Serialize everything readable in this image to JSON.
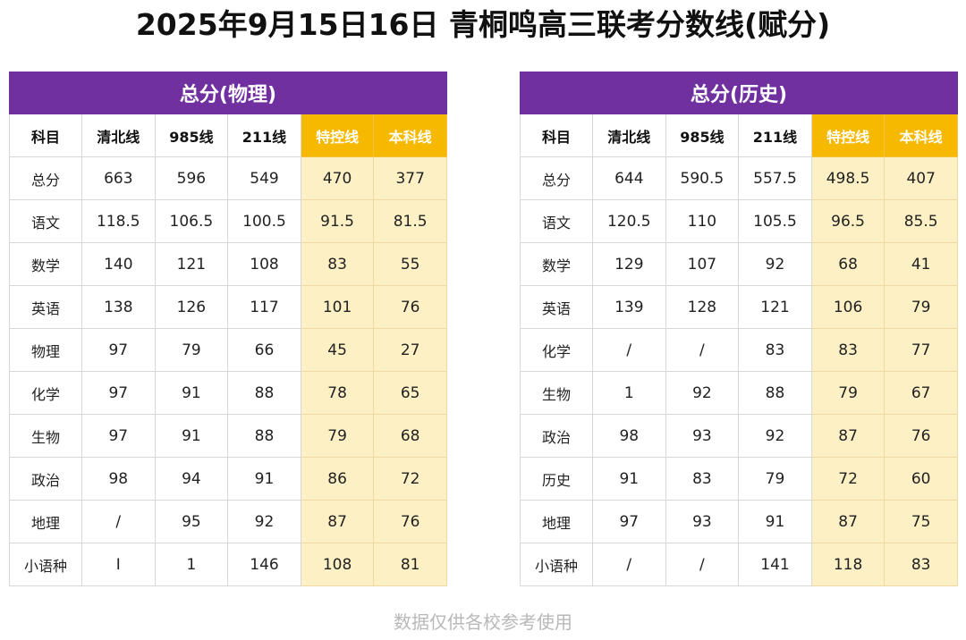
{
  "title": "2025年9月15日16日 青桐鸣高三联考分数线(赋分)",
  "footer": "数据仅供各校参考使用",
  "colors": {
    "header_purple": "#7130a0",
    "highlight_header": "#f7b900",
    "highlight_cell": "#fdf0c5"
  },
  "physics": {
    "title": "总分(物理)",
    "headers": [
      "科目",
      "清北线",
      "985线",
      "211线",
      "特控线",
      "本科线"
    ],
    "rows": [
      [
        "总分",
        "663",
        "596",
        "549",
        "470",
        "377"
      ],
      [
        "语文",
        "118.5",
        "106.5",
        "100.5",
        "91.5",
        "81.5"
      ],
      [
        "数学",
        "140",
        "121",
        "108",
        "83",
        "55"
      ],
      [
        "英语",
        "138",
        "126",
        "117",
        "101",
        "76"
      ],
      [
        "物理",
        "97",
        "79",
        "66",
        "45",
        "27"
      ],
      [
        "化学",
        "97",
        "91",
        "88",
        "78",
        "65"
      ],
      [
        "生物",
        "97",
        "91",
        "88",
        "79",
        "68"
      ],
      [
        "政治",
        "98",
        "94",
        "91",
        "86",
        "72"
      ],
      [
        "地理",
        "/",
        "95",
        "92",
        "87",
        "76"
      ],
      [
        "小语种",
        "I",
        "1",
        "146",
        "108",
        "81"
      ]
    ]
  },
  "history": {
    "title": "总分(历史)",
    "headers": [
      "科目",
      "清北线",
      "985线",
      "211线",
      "特控线",
      "本科线"
    ],
    "rows": [
      [
        "总分",
        "644",
        "590.5",
        "557.5",
        "498.5",
        "407"
      ],
      [
        "语文",
        "120.5",
        "110",
        "105.5",
        "96.5",
        "85.5"
      ],
      [
        "数学",
        "129",
        "107",
        "92",
        "68",
        "41"
      ],
      [
        "英语",
        "139",
        "128",
        "121",
        "106",
        "79"
      ],
      [
        "化学",
        "/",
        "/",
        "83",
        "83",
        "77"
      ],
      [
        "生物",
        "1",
        "92",
        "88",
        "79",
        "67"
      ],
      [
        "政治",
        "98",
        "93",
        "92",
        "87",
        "76"
      ],
      [
        "历史",
        "91",
        "83",
        "79",
        "72",
        "60"
      ],
      [
        "地理",
        "97",
        "93",
        "91",
        "87",
        "75"
      ],
      [
        "小语种",
        "/",
        "/",
        "141",
        "118",
        "83"
      ]
    ]
  }
}
